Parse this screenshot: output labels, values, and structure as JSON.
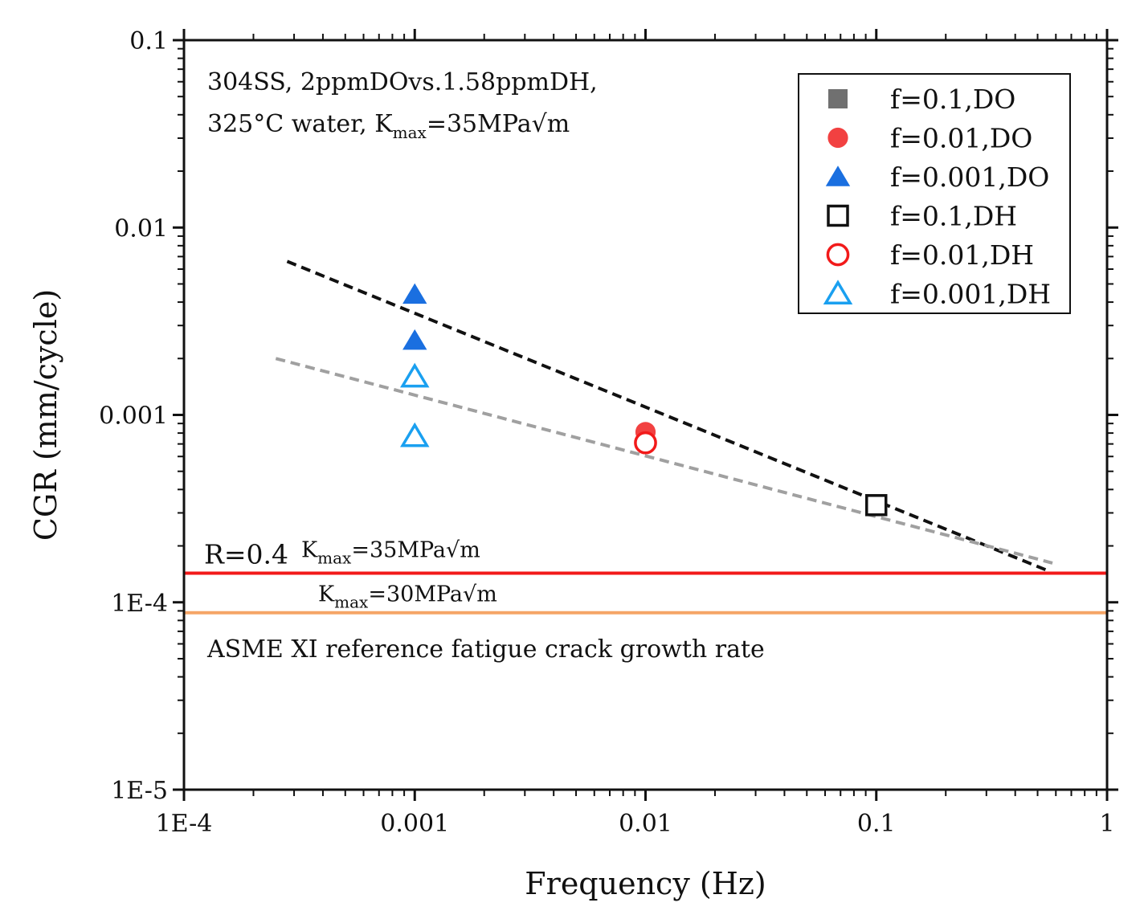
{
  "chart_data": {
    "type": "scatter",
    "xscale": "log",
    "yscale": "log",
    "xlim": [
      0.0001,
      1
    ],
    "ylim": [
      1e-05,
      0.1
    ],
    "xlabel": "Frequency (Hz)",
    "ylabel": "CGR (mm/cycle)",
    "x_ticks": [
      {
        "value": 0.0001,
        "label": "1E-4"
      },
      {
        "value": 0.001,
        "label": "0.001"
      },
      {
        "value": 0.01,
        "label": "0.01"
      },
      {
        "value": 0.1,
        "label": "0.1"
      },
      {
        "value": 1,
        "label": "1"
      }
    ],
    "y_ticks": [
      {
        "value": 1e-05,
        "label": "1E-5"
      },
      {
        "value": 0.0001,
        "label": "1E-4"
      },
      {
        "value": 0.001,
        "label": "0.001"
      },
      {
        "value": 0.01,
        "label": "0.01"
      },
      {
        "value": 0.1,
        "label": "0.1"
      }
    ],
    "annotation": {
      "line1": "304SS, 2ppmDOvs.1.58ppmDH,",
      "line2_prefix": "325°C water, K",
      "line2_sub": "max",
      "line2_suffix": "=35MPa√m"
    },
    "series": [
      {
        "name": "f=0.1,DO",
        "marker": "square",
        "filled": true,
        "color": "#707070",
        "points": []
      },
      {
        "name": "f=0.01,DO",
        "marker": "circle",
        "filled": true,
        "color": "#f24141",
        "points": [
          [
            0.01,
            0.00081
          ]
        ]
      },
      {
        "name": "f=0.001,DO",
        "marker": "triangle",
        "filled": true,
        "color": "#1a6fe0",
        "points": [
          [
            0.001,
            0.0044
          ],
          [
            0.001,
            0.0025
          ]
        ]
      },
      {
        "name": "f=0.1,DH",
        "marker": "square",
        "filled": false,
        "color": "#111111",
        "points": [
          [
            0.1,
            0.00033
          ]
        ]
      },
      {
        "name": "f=0.01,DH",
        "marker": "circle",
        "filled": false,
        "color": "#f21a1a",
        "points": [
          [
            0.01,
            0.00071
          ]
        ]
      },
      {
        "name": "f=0.001,DH",
        "marker": "triangle",
        "filled": false,
        "color": "#1aa0f0",
        "points": [
          [
            0.001,
            0.0016
          ],
          [
            0.001,
            0.00077
          ]
        ]
      }
    ],
    "fit_lines": [
      {
        "name": "black-fit",
        "color": "#111111",
        "dashed": true,
        "points": [
          [
            0.00028,
            0.0066
          ],
          [
            0.55,
            0.000148
          ]
        ]
      },
      {
        "name": "gray-fit",
        "color": "#a0a0a0",
        "dashed": true,
        "points": [
          [
            0.00025,
            0.002
          ],
          [
            0.58,
            0.000162
          ]
        ]
      }
    ],
    "reference_lines": [
      {
        "name": "R=0.4 Kmax=35MPa√m",
        "color": "#f21a1a",
        "y": 0.000143,
        "label": "R=0.4",
        "label_color": "#f21a1a",
        "k_prefix": "K",
        "k_sub": "max",
        "k_suffix": "=35MPa√m"
      },
      {
        "name": "Kmax=30MPa√m",
        "color": "#f5a566",
        "y": 8.8e-05,
        "k_prefix": "K",
        "k_sub": "max",
        "k_suffix": "=30MPa√m"
      }
    ],
    "reference_caption": "ASME XI reference fatigue crack growth rate",
    "legend": {
      "position": "top-right"
    }
  }
}
